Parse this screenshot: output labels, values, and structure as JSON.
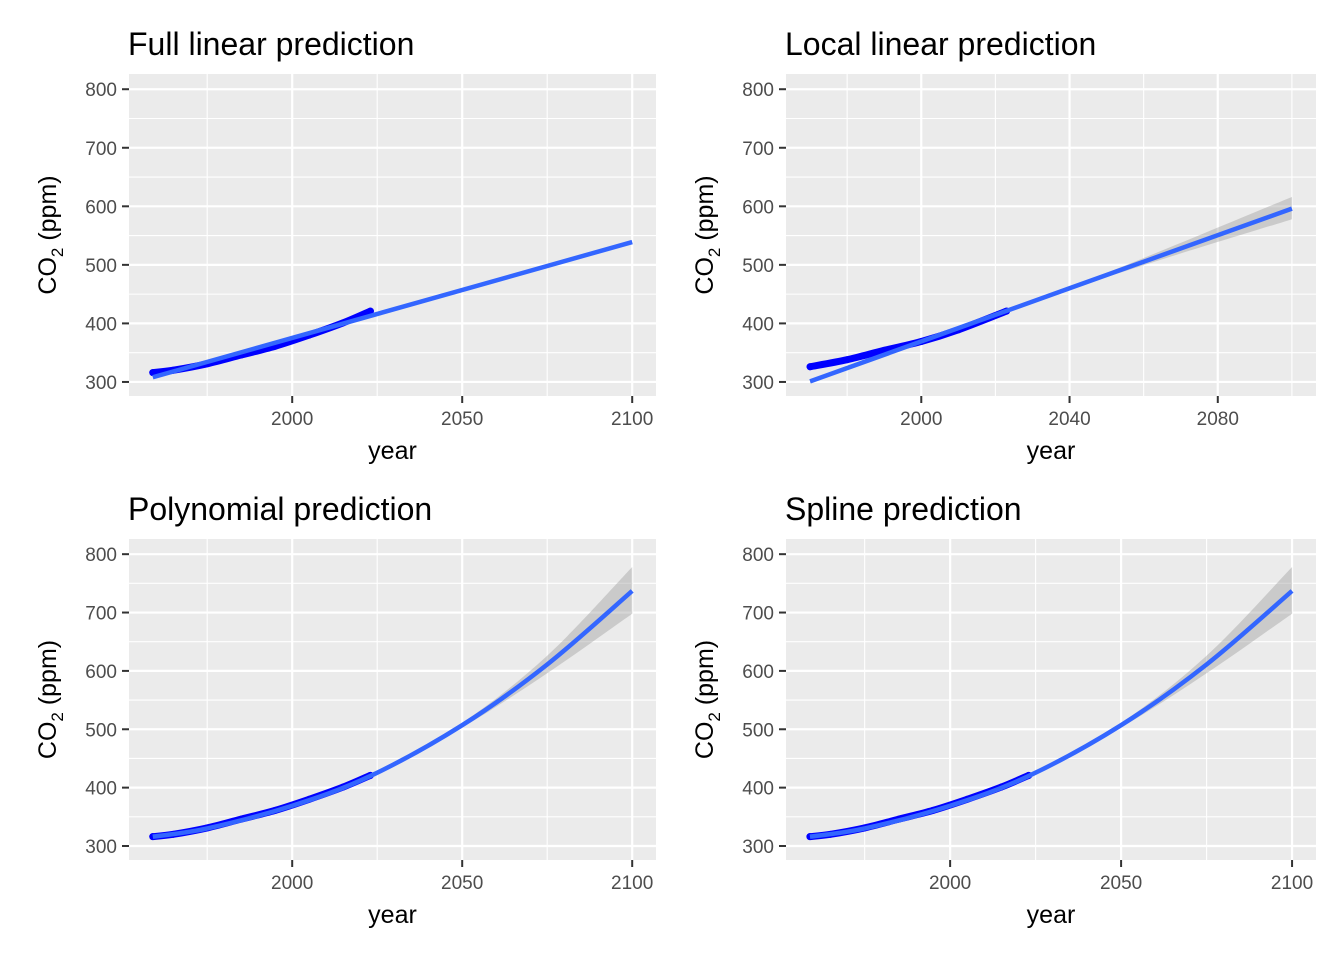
{
  "chart_data": [
    {
      "type": "line",
      "title": "Full linear prediction",
      "xlabel": "year",
      "ylabel": {
        "prefix": "CO",
        "subscript": "2",
        "suffix": " (ppm)"
      },
      "xlim": [
        1952,
        2107
      ],
      "ylim": [
        276,
        826
      ],
      "xticks": [
        2000,
        2050,
        2100
      ],
      "yticks": [
        300,
        400,
        500,
        600,
        700,
        800
      ],
      "observed": {
        "x": [
          1959,
          1965,
          1975,
          1985,
          1995,
          2005,
          2015,
          2023
        ],
        "y": [
          316,
          320,
          331,
          346,
          361,
          380,
          401,
          421
        ]
      },
      "fit": {
        "x": [
          1959,
          2100
        ],
        "y": [
          308,
          539
        ]
      },
      "ribbon": null,
      "colors": {
        "observed": "#0000ff",
        "fit": "#3366ff",
        "ribbon": "#999999",
        "panel": "#ebebeb",
        "grid": "#ffffff"
      }
    },
    {
      "type": "line",
      "title": "Local linear prediction",
      "xlabel": "year",
      "ylabel": {
        "prefix": "CO",
        "subscript": "2",
        "suffix": " (ppm)"
      },
      "xlim": [
        1963.5,
        2106.5
      ],
      "ylim": [
        276,
        826
      ],
      "xticks": [
        2000,
        2040,
        2080
      ],
      "yticks": [
        300,
        400,
        500,
        600,
        700,
        800
      ],
      "observed": {
        "x": [
          1970,
          1980,
          1990,
          2000,
          2010,
          2023
        ],
        "y": [
          326,
          338,
          354,
          369,
          389,
          421
        ]
      },
      "fit": {
        "x": [
          1970,
          2040,
          2100
        ],
        "y": [
          301,
          460,
          596
        ]
      },
      "ribbon": {
        "x": [
          1970,
          2040,
          2100
        ],
        "lower": [
          298,
          458,
          578
        ],
        "upper": [
          304,
          462,
          616
        ]
      },
      "colors": {
        "observed": "#0000ff",
        "fit": "#3366ff",
        "ribbon": "#999999",
        "panel": "#ebebeb",
        "grid": "#ffffff"
      }
    },
    {
      "type": "line",
      "title": "Polynomial prediction",
      "xlabel": "year",
      "ylabel": {
        "prefix": "CO",
        "subscript": "2",
        "suffix": " (ppm)"
      },
      "xlim": [
        1952,
        2107
      ],
      "ylim": [
        276,
        826
      ],
      "xticks": [
        2000,
        2050,
        2100
      ],
      "yticks": [
        300,
        400,
        500,
        600,
        700,
        800
      ],
      "observed": {
        "x": [
          1959,
          1965,
          1975,
          1985,
          1995,
          2005,
          2015,
          2023
        ],
        "y": [
          316,
          320,
          331,
          346,
          361,
          380,
          401,
          421
        ]
      },
      "fit": {
        "x": [
          1959,
          1975,
          2000,
          2023,
          2050,
          2075,
          2100
        ],
        "y": [
          316,
          330,
          369,
          420,
          507,
          611,
          737
        ]
      },
      "ribbon": {
        "x": [
          1959,
          1975,
          2000,
          2023,
          2050,
          2075,
          2100
        ],
        "lower": [
          314,
          328,
          368,
          419,
          503,
          596,
          698
        ],
        "upper": [
          318,
          332,
          370,
          421,
          511,
          626,
          778
        ]
      },
      "colors": {
        "observed": "#0000ff",
        "fit": "#3366ff",
        "ribbon": "#999999",
        "panel": "#ebebeb",
        "grid": "#ffffff"
      }
    },
    {
      "type": "line",
      "title": "Spline prediction",
      "xlabel": "year",
      "ylabel": {
        "prefix": "CO",
        "subscript": "2",
        "suffix": " (ppm)"
      },
      "xlim": [
        1952,
        2107
      ],
      "ylim": [
        276,
        826
      ],
      "xticks": [
        2000,
        2050,
        2100
      ],
      "yticks": [
        300,
        400,
        500,
        600,
        700,
        800
      ],
      "observed": {
        "x": [
          1959,
          1965,
          1975,
          1985,
          1995,
          2005,
          2015,
          2023
        ],
        "y": [
          316,
          320,
          331,
          346,
          361,
          380,
          401,
          421
        ]
      },
      "fit": {
        "x": [
          1959,
          1975,
          2000,
          2023,
          2050,
          2075,
          2100
        ],
        "y": [
          316,
          330,
          369,
          420,
          507,
          611,
          737
        ]
      },
      "ribbon": {
        "x": [
          1959,
          1975,
          2000,
          2023,
          2050,
          2075,
          2100
        ],
        "lower": [
          314,
          328,
          368,
          419,
          503,
          596,
          698
        ],
        "upper": [
          318,
          332,
          370,
          421,
          511,
          626,
          778
        ]
      },
      "colors": {
        "observed": "#0000ff",
        "fit": "#3366ff",
        "ribbon": "#999999",
        "panel": "#ebebeb",
        "grid": "#ffffff"
      }
    }
  ]
}
